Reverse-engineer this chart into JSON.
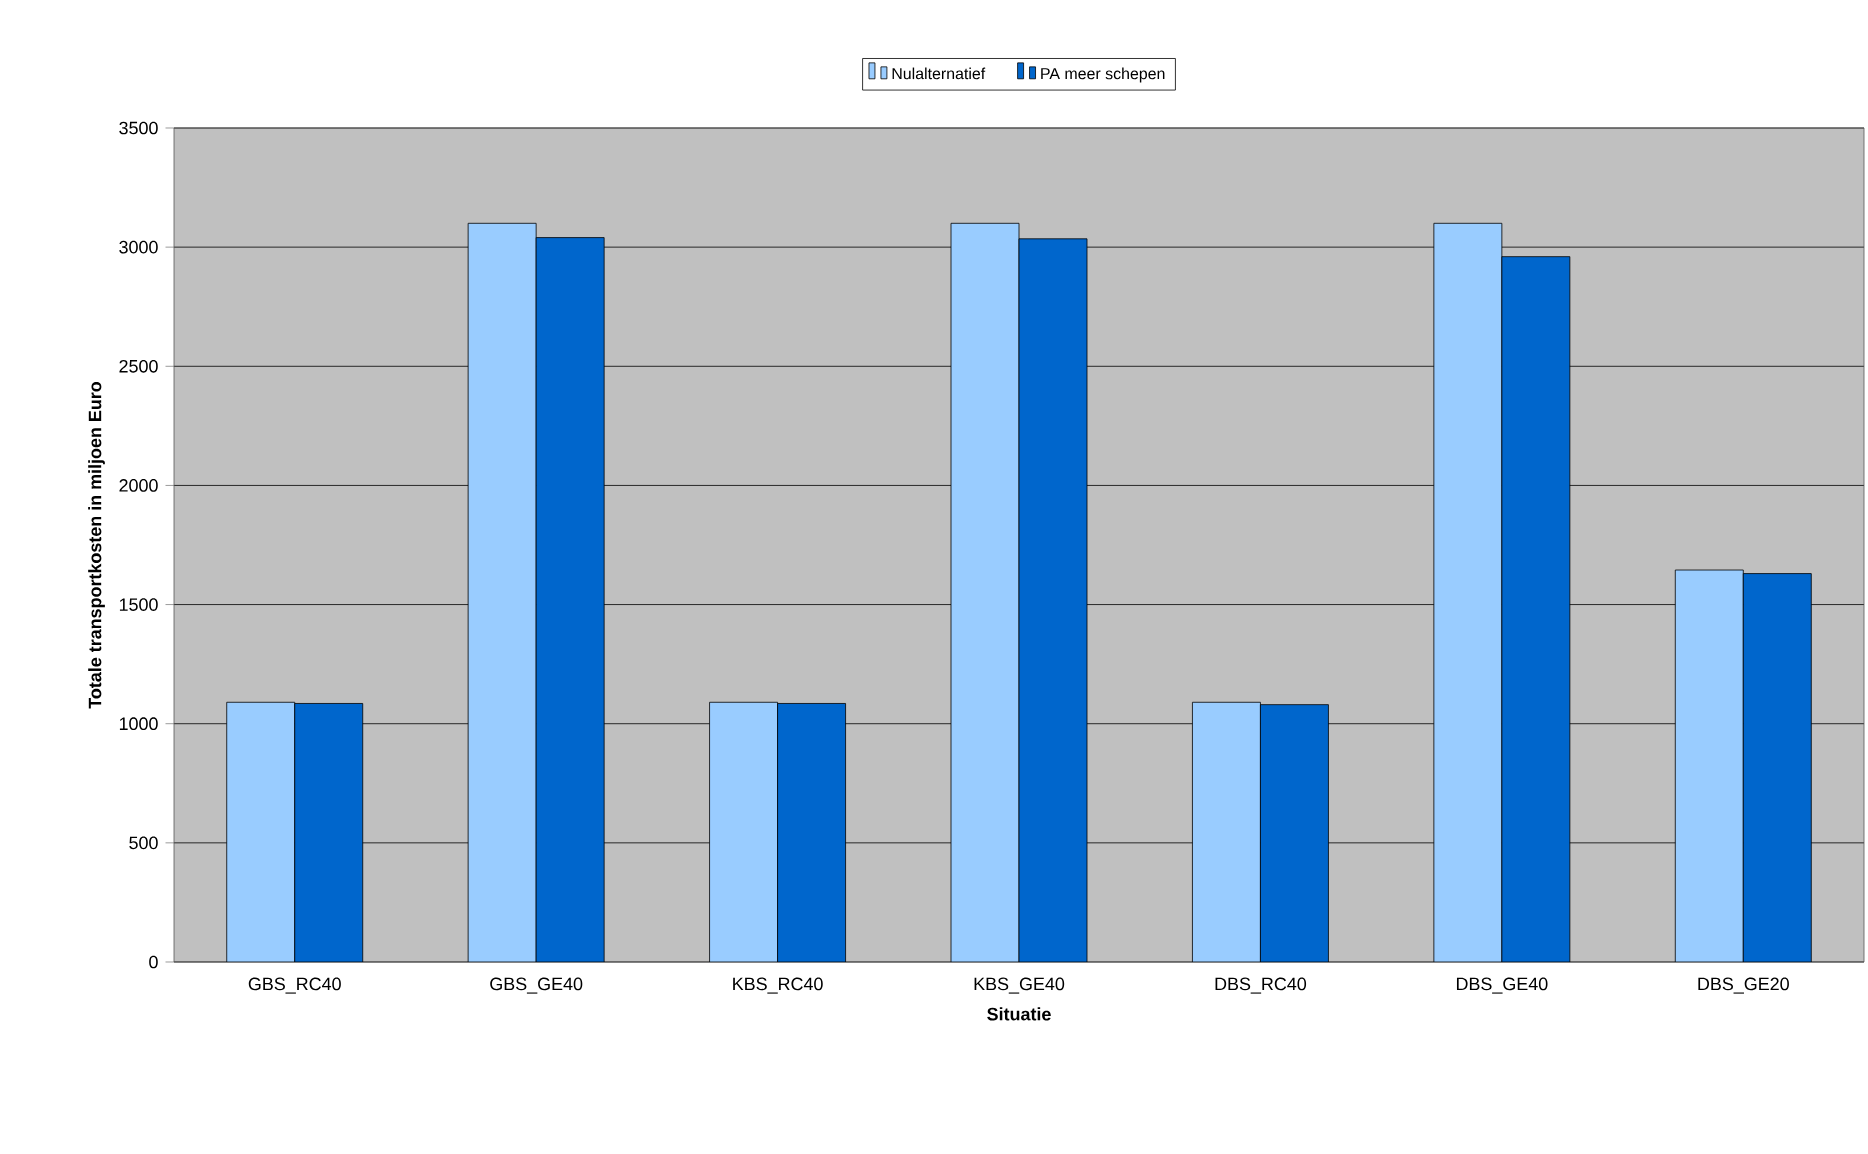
{
  "chart_data": {
    "type": "bar",
    "xlabel": "Situatie",
    "ylabel": "Totale transportkosten in miljoen Euro",
    "categories": [
      "GBS_RC40",
      "GBS_GE40",
      "KBS_RC40",
      "KBS_GE40",
      "DBS_RC40",
      "DBS_GE40",
      "DBS_GE20"
    ],
    "series": [
      {
        "name": "Nulalternatief",
        "color": "#99ccff",
        "values": [
          1090,
          3100,
          1090,
          3100,
          1090,
          3100,
          1645
        ]
      },
      {
        "name": "PA meer schepen",
        "color": "#0066cc",
        "values": [
          1085,
          3040,
          1085,
          3035,
          1080,
          2960,
          1630
        ]
      }
    ],
    "ylim": [
      0,
      3500
    ],
    "yticks": [
      0,
      500,
      1000,
      1500,
      2000,
      2500,
      3000,
      3500
    ],
    "grid": "y",
    "legend": "top"
  }
}
